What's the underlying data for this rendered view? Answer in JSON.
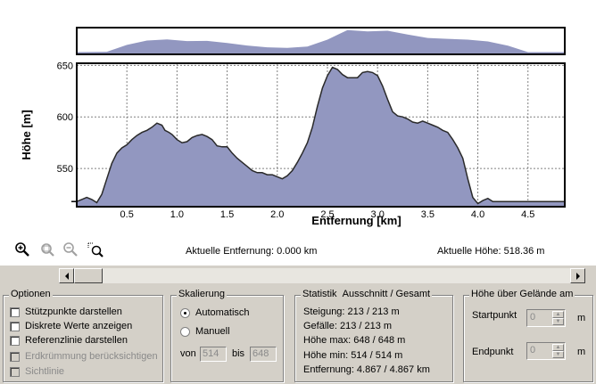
{
  "chart_data": {
    "type": "area",
    "xlabel": "Entfernung [km]",
    "ylabel": "Höhe [m]",
    "xlim": [
      0.0,
      4.867
    ],
    "ylim": [
      513,
      652
    ],
    "x_ticks": [
      "0.5",
      "1.0",
      "1.5",
      "2.0",
      "2.5",
      "3.0",
      "3.5",
      "4.0",
      "4.5"
    ],
    "y_ticks": [
      "550",
      "600",
      "650"
    ],
    "x_tick_values": [
      0.5,
      1.0,
      1.5,
      2.0,
      2.5,
      3.0,
      3.5,
      4.0,
      4.5
    ],
    "y_tick_values": [
      550,
      600,
      650
    ],
    "grid": true,
    "fill_color": "#9297c0",
    "line_color": "#2a2a2a",
    "x": [
      0.0,
      0.05,
      0.1,
      0.15,
      0.2,
      0.25,
      0.3,
      0.35,
      0.4,
      0.45,
      0.5,
      0.55,
      0.6,
      0.65,
      0.7,
      0.75,
      0.8,
      0.85,
      0.88,
      0.92,
      0.95,
      1.0,
      1.05,
      1.1,
      1.15,
      1.2,
      1.25,
      1.3,
      1.35,
      1.4,
      1.45,
      1.5,
      1.55,
      1.6,
      1.65,
      1.7,
      1.75,
      1.8,
      1.85,
      1.9,
      1.95,
      2.0,
      2.05,
      2.1,
      2.15,
      2.2,
      2.25,
      2.3,
      2.35,
      2.4,
      2.45,
      2.5,
      2.55,
      2.6,
      2.65,
      2.7,
      2.75,
      2.8,
      2.85,
      2.9,
      2.95,
      3.0,
      3.05,
      3.1,
      3.15,
      3.2,
      3.25,
      3.3,
      3.35,
      3.4,
      3.45,
      3.5,
      3.55,
      3.6,
      3.65,
      3.7,
      3.75,
      3.8,
      3.85,
      3.9,
      3.95,
      4.0,
      4.05,
      4.1,
      4.15,
      4.2,
      4.25,
      4.3,
      4.35,
      4.4,
      4.45,
      4.5,
      4.55,
      4.6,
      4.65,
      4.7,
      4.75,
      4.8,
      4.867
    ],
    "y": [
      518,
      520,
      522,
      520,
      517,
      525,
      540,
      555,
      565,
      570,
      573,
      578,
      582,
      585,
      587,
      590,
      594,
      592,
      587,
      585,
      583,
      578,
      575,
      576,
      580,
      582,
      583,
      581,
      578,
      572,
      571,
      571,
      565,
      560,
      556,
      552,
      548,
      546,
      546,
      544,
      544,
      542,
      540,
      543,
      548,
      556,
      565,
      575,
      590,
      610,
      628,
      640,
      648,
      646,
      641,
      638,
      638,
      638,
      643,
      644,
      643,
      640,
      630,
      617,
      605,
      601,
      600,
      598,
      595,
      594,
      596,
      594,
      592,
      590,
      587,
      585,
      578,
      570,
      560,
      540,
      522,
      516,
      519,
      521,
      518,
      518,
      518,
      518,
      518,
      518,
      518,
      518,
      518,
      518,
      518,
      518,
      518,
      518,
      518
    ],
    "overview": {
      "x": [
        0.0,
        0.3,
        0.5,
        0.7,
        0.9,
        1.1,
        1.3,
        1.5,
        1.7,
        1.9,
        2.1,
        2.3,
        2.5,
        2.7,
        2.9,
        3.1,
        3.3,
        3.5,
        3.7,
        3.9,
        4.1,
        4.3,
        4.5,
        4.867
      ],
      "y": [
        518,
        520,
        560,
        585,
        592,
        582,
        583,
        571,
        556,
        546,
        542,
        550,
        590,
        646,
        638,
        642,
        620,
        600,
        595,
        590,
        580,
        555,
        518,
        518
      ]
    }
  },
  "toolbar": {
    "icons": [
      "zoom-in-icon",
      "zoom-extent-icon",
      "zoom-out-icon",
      "zoom-window-icon"
    ]
  },
  "status": {
    "distance": "Aktuelle Entfernung: 0.000 km",
    "height": "Aktuelle Höhe: 518.36 m"
  },
  "options": {
    "title": "Optionen",
    "items": [
      {
        "label": "Stützpunkte darstellen",
        "enabled": true,
        "checked": false
      },
      {
        "label": "Diskrete Werte anzeigen",
        "enabled": true,
        "checked": false
      },
      {
        "label": "Referenzlinie darstellen",
        "enabled": true,
        "checked": false
      },
      {
        "label": "Erdkrümmung berücksichtigen",
        "enabled": false,
        "checked": false
      },
      {
        "label": "Sichtlinie",
        "enabled": false,
        "checked": false
      }
    ]
  },
  "scaling": {
    "title": "Skalierung",
    "auto": "Automatisch",
    "manual": "Manuell",
    "from_label": "von",
    "to_label": "bis",
    "from_value": "514",
    "to_value": "648"
  },
  "stats": {
    "title": "Statistik",
    "subtitle": "Ausschnitt / Gesamt",
    "rows": [
      "Steigung: 213 / 213 m",
      "Gefälle: 213 / 213 m",
      "Höhe max: 648 / 648 m",
      "Höhe min: 514 / 514 m",
      "Entfernung: 4.867 / 4.867 km"
    ]
  },
  "height_over_ground": {
    "title": "Höhe über Gelände am",
    "start_label": "Startpunkt",
    "end_label": "Endpunkt",
    "start_value": "0",
    "end_value": "0",
    "unit": "m"
  },
  "scrollbar": {
    "position": 0.0
  }
}
